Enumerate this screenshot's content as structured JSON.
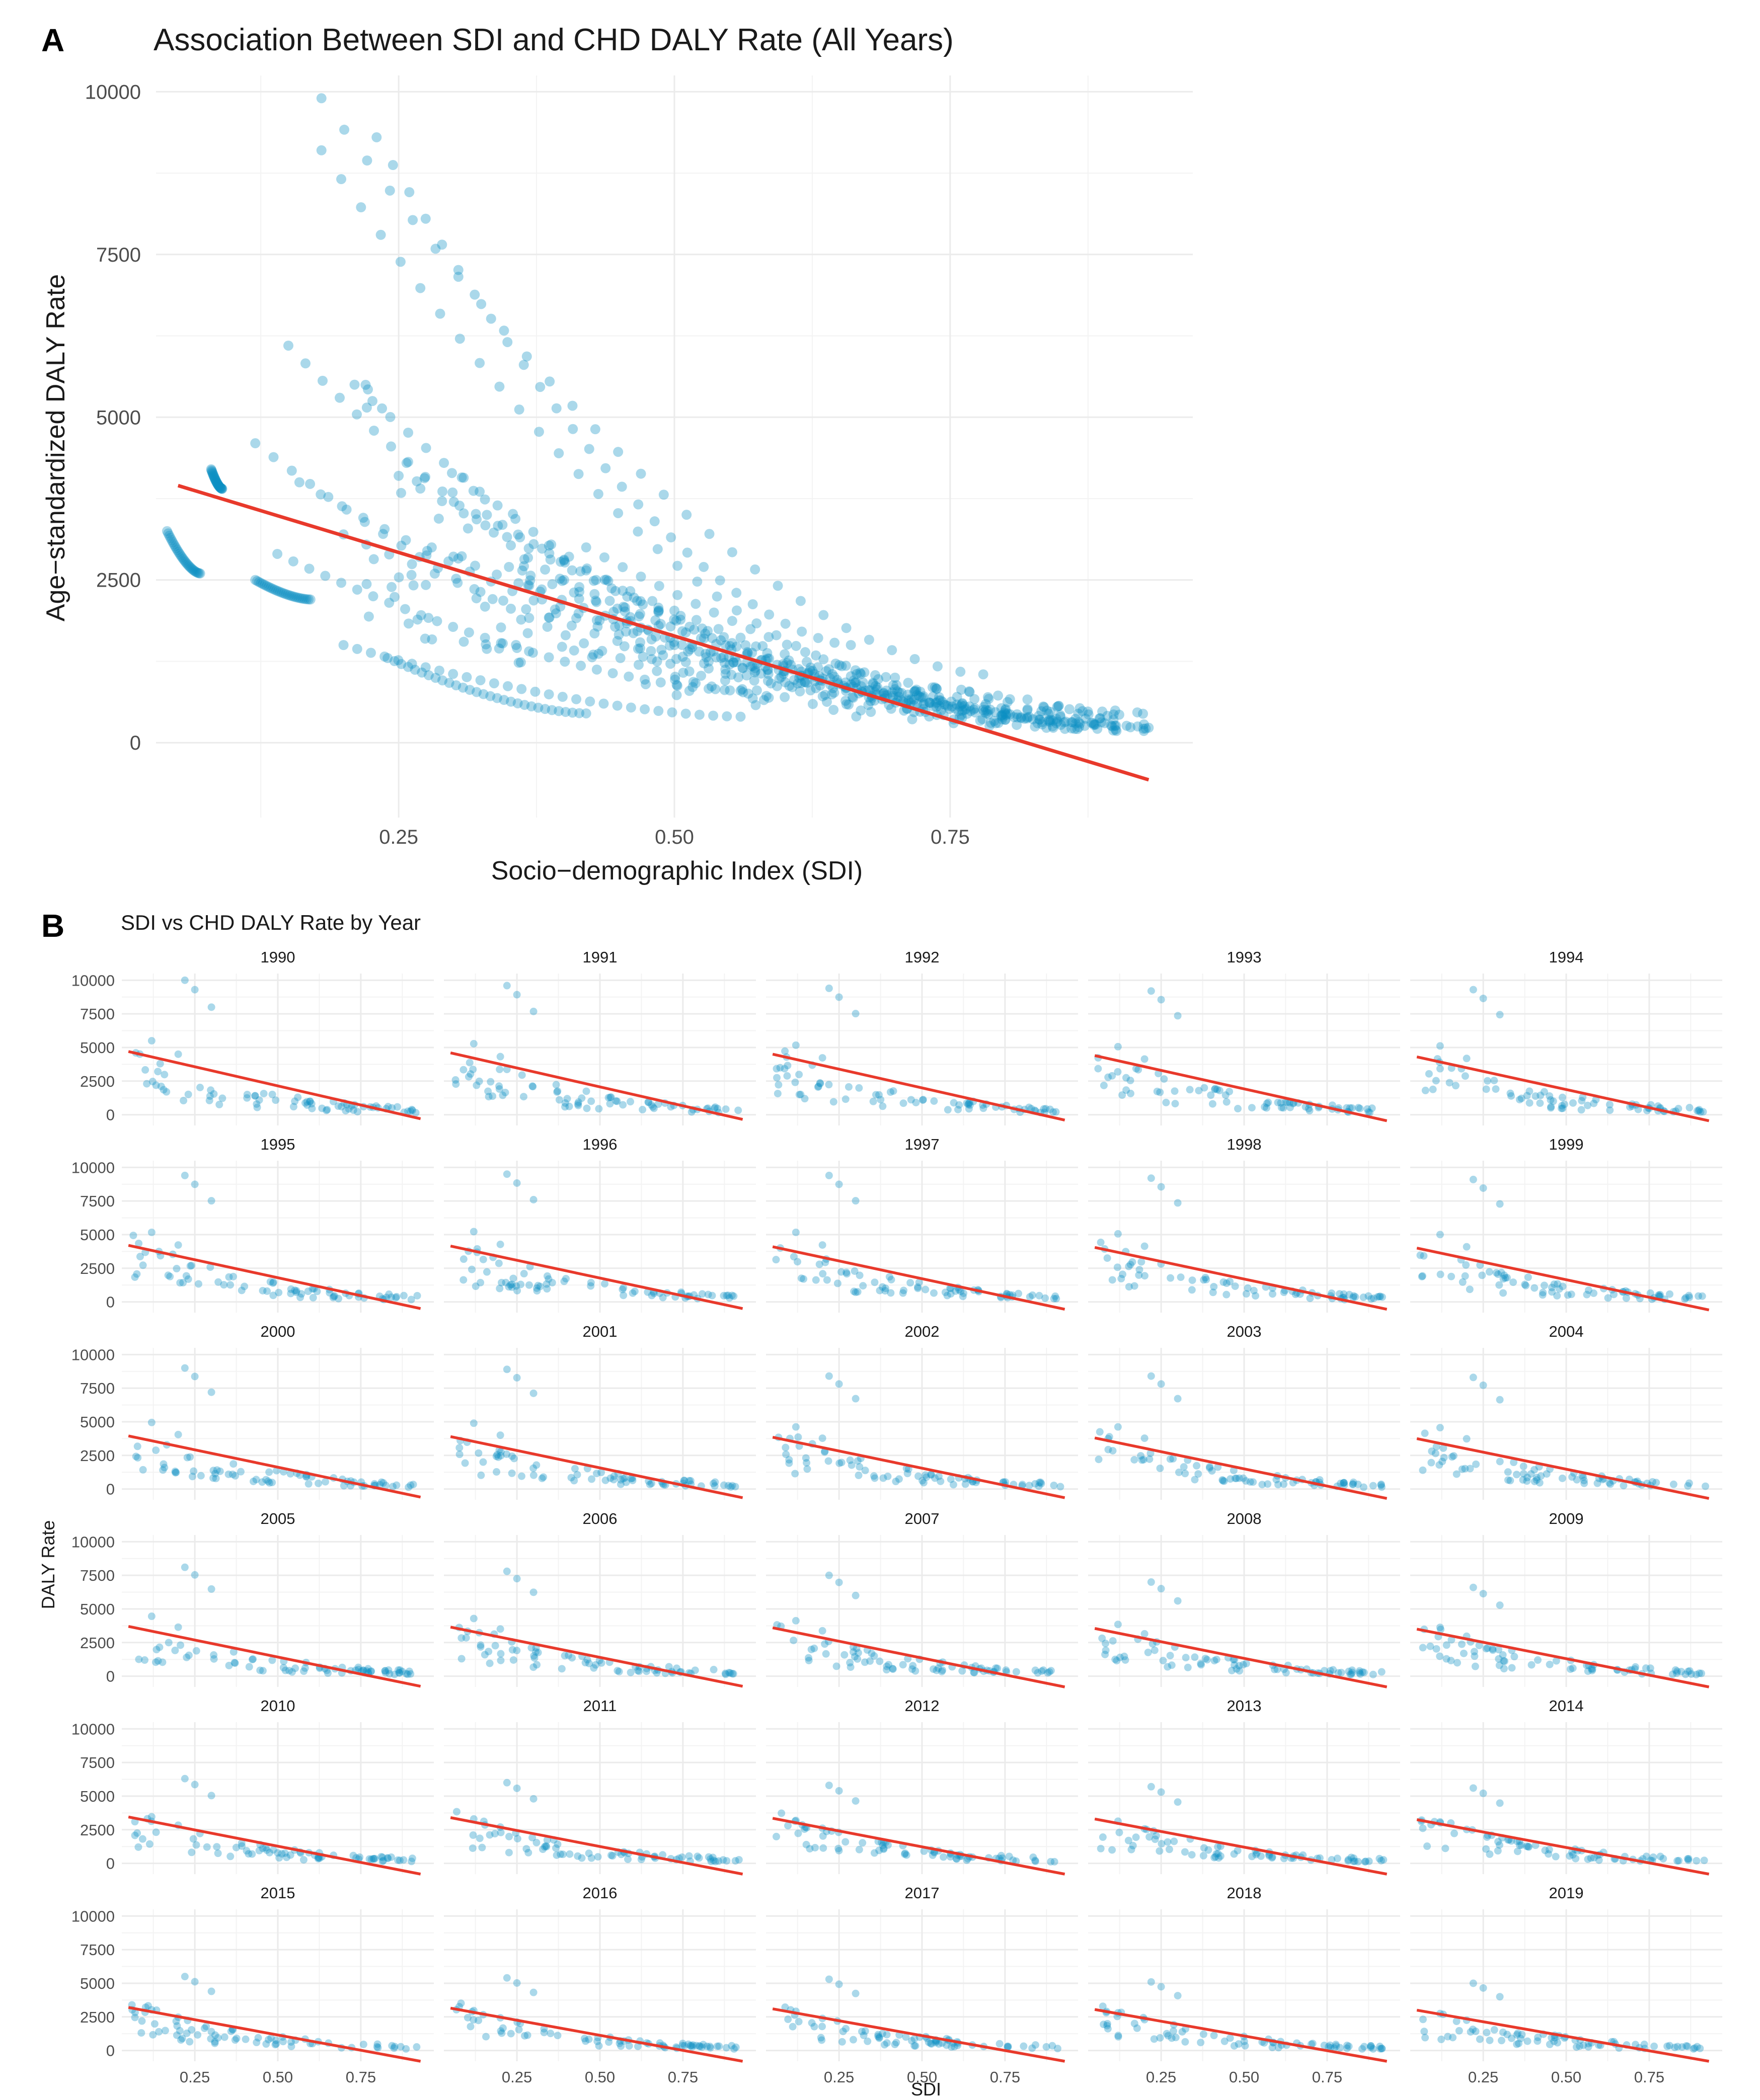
{
  "panel_a": {
    "letter": "A",
    "title": "Association Between SDI and CHD DALY Rate (All Years)"
  },
  "panel_b": {
    "letter": "B",
    "title": "SDI vs CHD DALY Rate by Year"
  },
  "colors": {
    "points": "#0b8fc2",
    "fit_line": "#e8392b",
    "grid": "#ebebeb"
  },
  "chart_data": [
    {
      "type": "scatter",
      "title": "Association Between SDI and CHD DALY Rate (All Years)",
      "xlabel": "Socio−demographic Index (SDI)",
      "ylabel": "Age−standardized DALY Rate",
      "xlim": [
        0.03,
        0.97
      ],
      "ylim": [
        -1150,
        10250
      ],
      "x_ticks": [
        0.25,
        0.5,
        0.75
      ],
      "x_tick_labels": [
        "0.25",
        "0.50",
        "0.75"
      ],
      "y_ticks": [
        0,
        2500,
        5000,
        7500,
        10000
      ],
      "y_tick_labels": [
        "0",
        "2500",
        "5000",
        "7500",
        "10000"
      ],
      "grid": true,
      "legend": "none",
      "fit_line": {
        "x": [
          0.05,
          0.93
        ],
        "y": [
          3950,
          -570
        ]
      },
      "trajectories": [
        {
          "x0": 0.18,
          "y0": 9900,
          "x1": 0.78,
          "y1": 1050
        },
        {
          "x0": 0.18,
          "y0": 9100,
          "x1": 0.7,
          "y1": 1000
        },
        {
          "x0": 0.23,
          "y0": 9300,
          "x1": 0.66,
          "y1": 1500
        },
        {
          "x0": 0.15,
          "y0": 6100,
          "x1": 0.6,
          "y1": 1100
        },
        {
          "x0": 0.21,
          "y0": 5500,
          "x1": 0.68,
          "y1": 900
        },
        {
          "x0": 0.12,
          "y0": 4600,
          "x1": 0.6,
          "y1": 700
        },
        {
          "x0": 0.16,
          "y0": 4000,
          "x1": 0.72,
          "y1": 600
        },
        {
          "x0": 0.25,
          "y0": 4100,
          "x1": 0.82,
          "y1": 500
        },
        {
          "x0": 0.3,
          "y0": 3700,
          "x1": 0.88,
          "y1": 300
        },
        {
          "x0": 0.2,
          "y0": 3200,
          "x1": 0.8,
          "y1": 350
        },
        {
          "x0": 0.28,
          "y0": 3000,
          "x1": 0.85,
          "y1": 400
        },
        {
          "x0": 0.35,
          "y0": 2700,
          "x1": 0.92,
          "y1": 250
        },
        {
          "x0": 0.14,
          "y0": 2900,
          "x1": 0.56,
          "y1": 800
        },
        {
          "x0": 0.2,
          "y0": 1500,
          "x1": 0.56,
          "y1": 400
        },
        {
          "x0": 0.24,
          "y0": 1300,
          "x1": 0.42,
          "y1": 450
        },
        {
          "x0": 0.12,
          "y0": 2500,
          "x1": 0.17,
          "y1": 2200
        },
        {
          "x0": 0.08,
          "y0": 4200,
          "x1": 0.09,
          "y1": 3900
        },
        {
          "x0": 0.04,
          "y0": 3250,
          "x1": 0.07,
          "y1": 2600
        },
        {
          "x0": 0.42,
          "y0": 3000,
          "x1": 0.9,
          "y1": 200
        },
        {
          "x0": 0.38,
          "y0": 2200,
          "x1": 0.86,
          "y1": 220
        },
        {
          "x0": 0.45,
          "y0": 1800,
          "x1": 0.93,
          "y1": 230
        },
        {
          "x0": 0.5,
          "y0": 1500,
          "x1": 0.91,
          "y1": 260
        },
        {
          "x0": 0.55,
          "y0": 1200,
          "x1": 0.89,
          "y1": 300
        },
        {
          "x0": 0.33,
          "y0": 3500,
          "x1": 0.74,
          "y1": 700
        },
        {
          "x0": 0.4,
          "y0": 2500,
          "x1": 0.8,
          "y1": 500
        }
      ]
    },
    {
      "type": "scatter",
      "facets": "year",
      "title": "SDI vs CHD DALY Rate by Year",
      "xlabel": "SDI",
      "ylabel": "DALY Rate",
      "xlim": [
        0.03,
        0.97
      ],
      "ylim": [
        -800,
        10500
      ],
      "x_ticks": [
        0.25,
        0.5,
        0.75
      ],
      "x_tick_labels": [
        "0.25",
        "0.50",
        "0.75"
      ],
      "y_ticks": [
        0,
        2500,
        5000,
        7500,
        10000
      ],
      "y_tick_labels": [
        "0",
        "2500",
        "5000",
        "7500",
        "10000"
      ],
      "grid": true,
      "legend": "none",
      "years": [
        "1990",
        "1991",
        "1992",
        "1993",
        "1994",
        "1995",
        "1996",
        "1997",
        "1998",
        "1999",
        "2000",
        "2001",
        "2002",
        "2003",
        "2004",
        "2005",
        "2006",
        "2007",
        "2008",
        "2009",
        "2010",
        "2011",
        "2012",
        "2013",
        "2014",
        "2015",
        "2016",
        "2017",
        "2018",
        "2019"
      ],
      "fit_start_y": [
        4700,
        4600,
        4500,
        4400,
        4300,
        4200,
        4150,
        4100,
        4050,
        4000,
        3950,
        3900,
        3850,
        3800,
        3750,
        3700,
        3650,
        3600,
        3550,
        3500,
        3450,
        3400,
        3350,
        3300,
        3250,
        3200,
        3150,
        3100,
        3050,
        3000
      ],
      "fit_end_y": [
        -300,
        -350,
        -400,
        -450,
        -450,
        -500,
        -500,
        -550,
        -550,
        -600,
        -600,
        -650,
        -650,
        -700,
        -700,
        -750,
        -750,
        -800,
        -800,
        -800,
        -800,
        -800,
        -800,
        -800,
        -800,
        -800,
        -800,
        -800,
        -800,
        -800
      ],
      "fit_x": [
        0.05,
        0.93
      ],
      "outlier_peak_y": [
        10000,
        9600,
        9400,
        9200,
        9300,
        9400,
        9500,
        9400,
        9200,
        9100,
        9000,
        8900,
        8400,
        8400,
        8300,
        8100,
        7800,
        7500,
        7000,
        6600,
        6300,
        6000,
        5800,
        5700,
        5600,
        5500,
        5400,
        5300,
        5100,
        5000
      ]
    }
  ]
}
